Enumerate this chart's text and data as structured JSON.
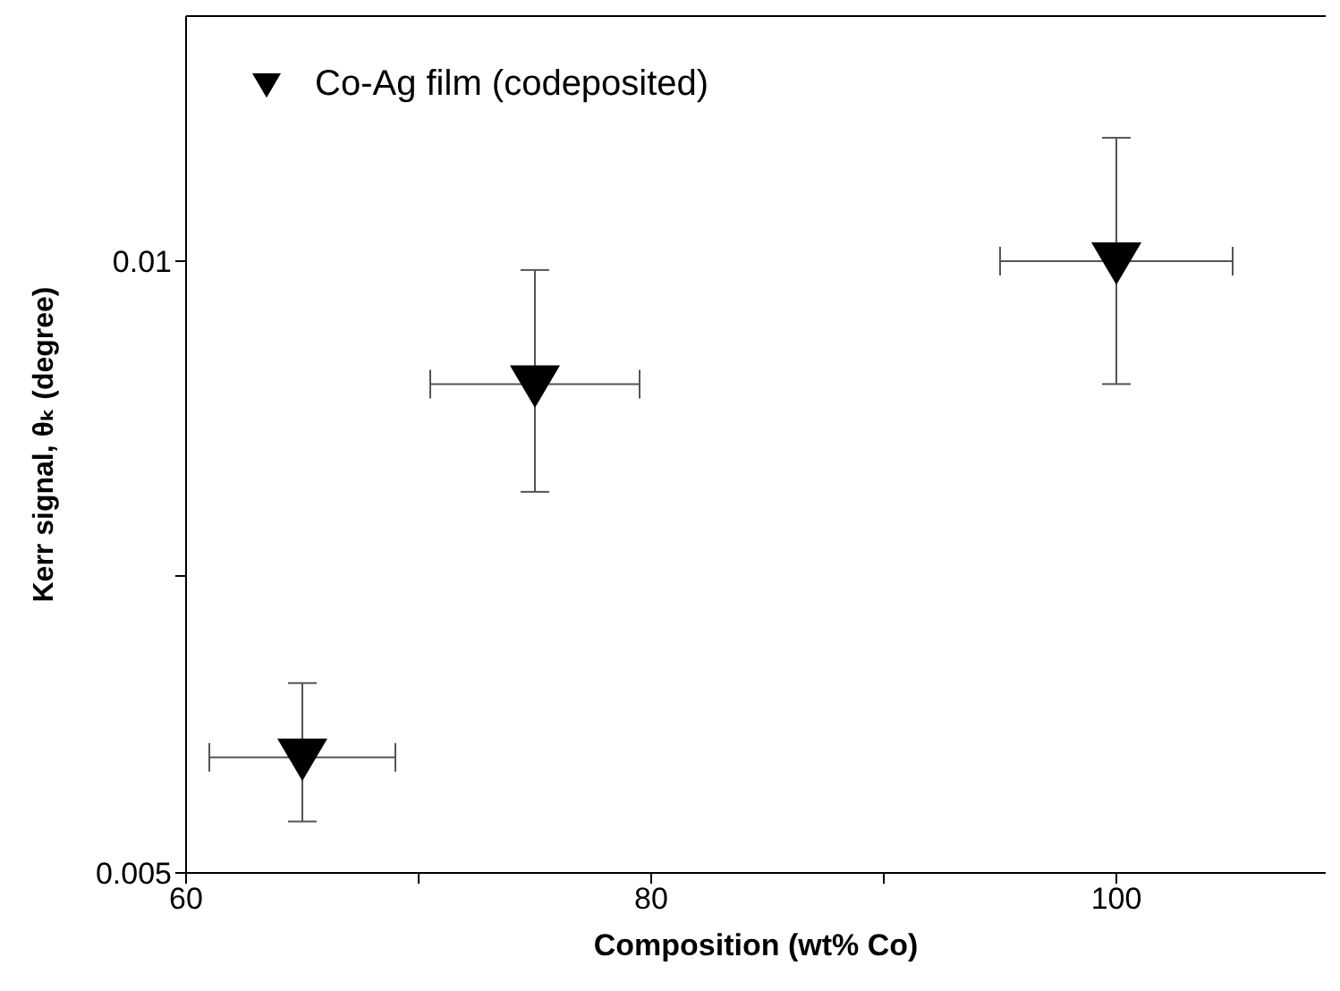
{
  "chart_data": {
    "type": "scatter",
    "xlabel": "Composition (wt% Co)",
    "ylabel": "Kerr signal, θₖ (degree)",
    "x": [
      65,
      75,
      100
    ],
    "log": "y",
    "xlim": [
      60,
      109
    ],
    "xticks": [
      60,
      {
        "value": 70,
        "label": null
      },
      80,
      {
        "value": 90,
        "label": null
      },
      100
    ],
    "ylim": [
      0.005,
      0.0132
    ],
    "yticks": [
      0.005,
      {
        "value": 0.007,
        "label": null
      },
      0.01
    ],
    "marker": "triangle",
    "legend": "top left",
    "series": [
      {
        "name": "Co-Ag film (codeposited)",
        "color": "#000000",
        "values": [
          0.0057,
          0.0087,
          0.01
        ],
        "errors": [
          [
            0.0053,
            0.0062
          ],
          [
            0.0077,
            0.0099
          ],
          [
            0.0087,
            0.0115
          ]
        ],
        "xerrors": [
          4,
          4.5,
          5
        ]
      }
    ]
  }
}
